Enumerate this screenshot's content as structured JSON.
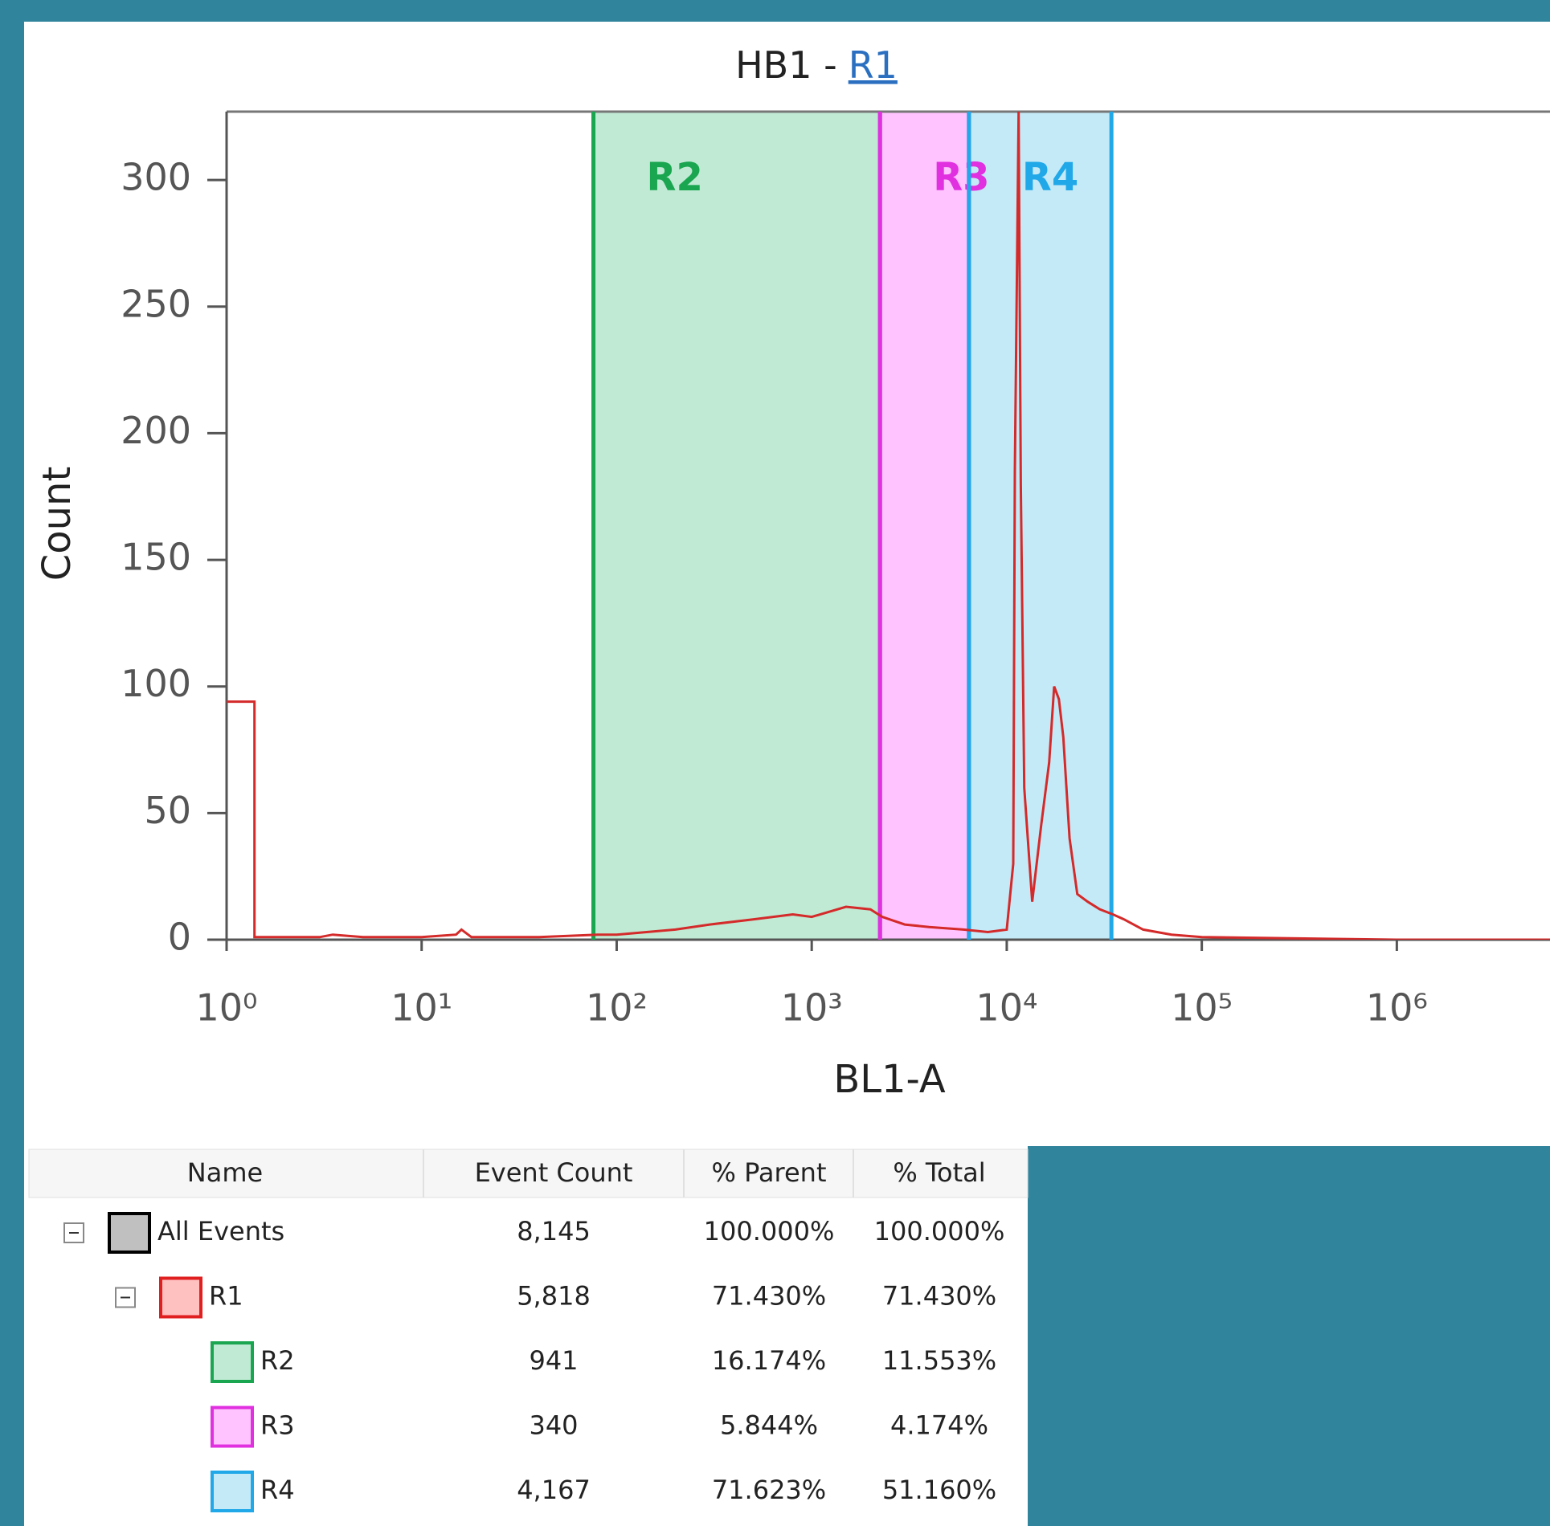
{
  "chart_data": {
    "type": "histogram-line",
    "title_prefix": "HB1 -",
    "title_link": "R1",
    "xlabel": "BL1-A",
    "ylabel": "Count",
    "log_x": true,
    "xlim": [
      1,
      6100000
    ],
    "xticks": [
      {
        "value": 1,
        "label": "10⁰"
      },
      {
        "value": 10,
        "label": "10¹"
      },
      {
        "value": 100,
        "label": "10²"
      },
      {
        "value": 1000,
        "label": "10³"
      },
      {
        "value": 10000,
        "label": "10⁴"
      },
      {
        "value": 100000,
        "label": "10⁵"
      },
      {
        "value": 1000000,
        "label": "10⁶"
      }
    ],
    "ylim": [
      0,
      327
    ],
    "yticks": [
      0,
      50,
      100,
      150,
      200,
      250,
      300
    ],
    "color": "#d42a2a",
    "x": [
      1,
      1.39,
      1.39,
      3,
      3.5,
      5,
      10,
      15,
      16,
      18,
      40,
      80,
      100,
      200,
      300,
      500,
      800,
      1000,
      1500,
      2000,
      2300,
      3000,
      4000,
      6000,
      8000,
      10000,
      10800,
      11000,
      11500,
      11800,
      12300,
      13500,
      15000,
      16500,
      17500,
      18500,
      19500,
      21000,
      23000,
      26000,
      30000,
      35000,
      40000,
      50000,
      70000,
      100000,
      1000000,
      6100000
    ],
    "values": [
      94,
      94,
      1,
      1,
      2,
      1,
      1,
      2,
      4,
      1,
      1,
      2,
      2,
      4,
      6,
      8,
      10,
      9,
      13,
      12,
      9,
      6,
      5,
      4,
      3,
      4,
      30,
      185,
      327,
      180,
      60,
      15,
      45,
      70,
      100,
      95,
      80,
      40,
      18,
      15,
      12,
      10,
      8,
      4,
      2,
      1,
      0,
      0
    ],
    "gates": [
      {
        "name": "R2",
        "from": 76,
        "to": 2240,
        "color": "#1aa650",
        "fill": "#c0ead4"
      },
      {
        "name": "R3",
        "from": 2240,
        "to": 6400,
        "color": "#e030e0",
        "fill": "#ffc4ff"
      },
      {
        "name": "R4",
        "from": 6400,
        "to": 34400,
        "color": "#20a8e8",
        "fill": "#c4eaf8"
      }
    ]
  },
  "table": {
    "headers": [
      "Name",
      "Event Count",
      "% Parent",
      "% Total"
    ],
    "rows": [
      {
        "name": "All Events",
        "level": 0,
        "expandable": true,
        "color": "#000000",
        "fill": "#c0c0c0",
        "count": "8,145",
        "parent": "100.000%",
        "total": "100.000%"
      },
      {
        "name": "R1",
        "level": 1,
        "expandable": true,
        "color": "#e02020",
        "fill": "#ffc0c0",
        "count": "5,818",
        "parent": "71.430%",
        "total": "71.430%"
      },
      {
        "name": "R2",
        "level": 2,
        "expandable": false,
        "color": "#1aa650",
        "fill": "#c0ead4",
        "count": "941",
        "parent": "16.174%",
        "total": "11.553%"
      },
      {
        "name": "R3",
        "level": 2,
        "expandable": false,
        "color": "#e030e0",
        "fill": "#ffc4ff",
        "count": "340",
        "parent": "5.844%",
        "total": "4.174%"
      },
      {
        "name": "R4",
        "level": 2,
        "expandable": false,
        "color": "#20a8e8",
        "fill": "#c4eaf8",
        "count": "4,167",
        "parent": "71.623%",
        "total": "51.160%"
      }
    ]
  }
}
